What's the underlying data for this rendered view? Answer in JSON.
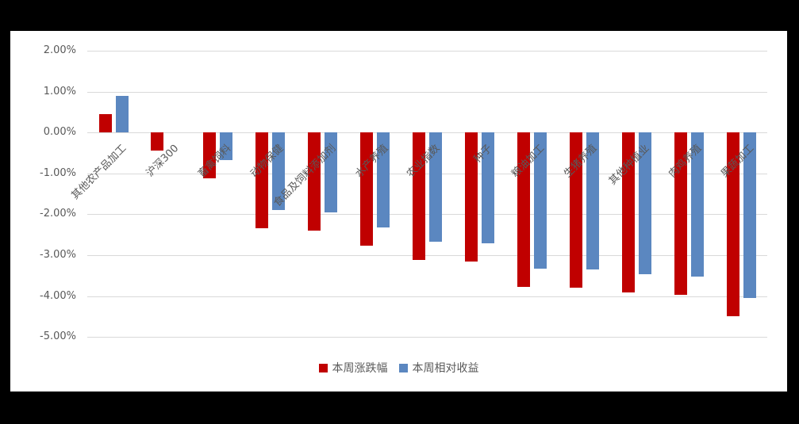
{
  "chart_data": {
    "type": "bar",
    "title": "",
    "categories": [
      "其他农产品加工",
      "沪深300",
      "畜禽饲料",
      "动物保健",
      "食品及饲料添加剂",
      "水产养殖",
      "农业指数",
      "种子",
      "粮油加工",
      "生猪养殖",
      "其他种植业",
      "肉鸡养殖",
      "果蔬加工"
    ],
    "series": [
      {
        "name": "本周涨跌幅",
        "color": "#c00000",
        "values": [
          0.45,
          -0.45,
          -1.12,
          -2.35,
          -2.4,
          -2.77,
          -3.12,
          -3.16,
          -3.78,
          -3.8,
          -3.91,
          -3.97,
          -4.5
        ]
      },
      {
        "name": "本周相对收益",
        "color": "#5b87c0",
        "values": [
          0.9,
          null,
          -0.67,
          -1.9,
          -1.95,
          -2.32,
          -2.67,
          -2.71,
          -3.33,
          -3.35,
          -3.46,
          -3.52,
          -4.05
        ]
      }
    ],
    "ylim": [
      -5,
      2
    ],
    "ytick_values": [
      2,
      1,
      0,
      -1,
      -2,
      -3,
      -4,
      -5
    ],
    "ytick_labels": [
      "2.00%",
      "1.00%",
      "0.00%",
      "-1.00%",
      "-2.00%",
      "-3.00%",
      "-4.00%",
      "-5.00%"
    ],
    "unit": "percent",
    "grid": "horizontal",
    "legend_position": "bottom",
    "plot_bg": "#ffffff",
    "gridline_color": "#d9d9d9",
    "text_color": "#595959"
  }
}
